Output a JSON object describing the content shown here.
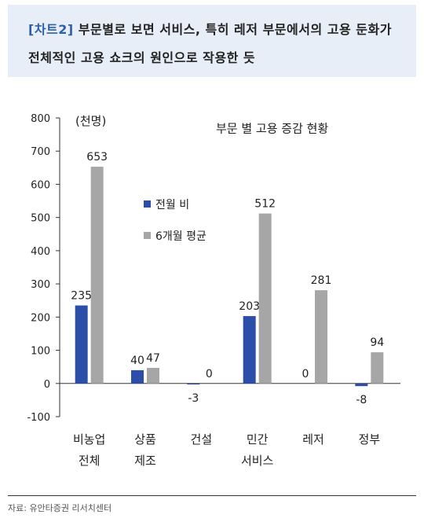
{
  "header": {
    "tag": "[차트2]",
    "title": "부문별로 보면 서비스, 특히 레저 부문에서의 고용 둔화가 전체적인 고용 쇼크의 원인으로 작용한 듯"
  },
  "source": "자료: 유안타증권 리서치센터",
  "chart_data": {
    "type": "bar",
    "title": "부문 별 고용 증감 현황",
    "unit_label": "(천명)",
    "categories": [
      [
        "비농업",
        "전체"
      ],
      [
        "상품",
        "제조"
      ],
      [
        "건설"
      ],
      [
        "민간",
        "서비스"
      ],
      [
        "레저"
      ],
      [
        "정부"
      ]
    ],
    "series": [
      {
        "name": "전월 비",
        "color": "#2b4fa8",
        "values": [
          235,
          40,
          -3,
          203,
          0,
          -8
        ]
      },
      {
        "name": "6개월 평균",
        "color": "#a6a6a6",
        "values": [
          653,
          47,
          0,
          512,
          281,
          94
        ]
      }
    ],
    "ylim": [
      -100,
      800
    ],
    "yticks": [
      -100,
      0,
      100,
      200,
      300,
      400,
      500,
      600,
      700,
      800
    ],
    "legend_position": "upper-center",
    "grid": false
  }
}
